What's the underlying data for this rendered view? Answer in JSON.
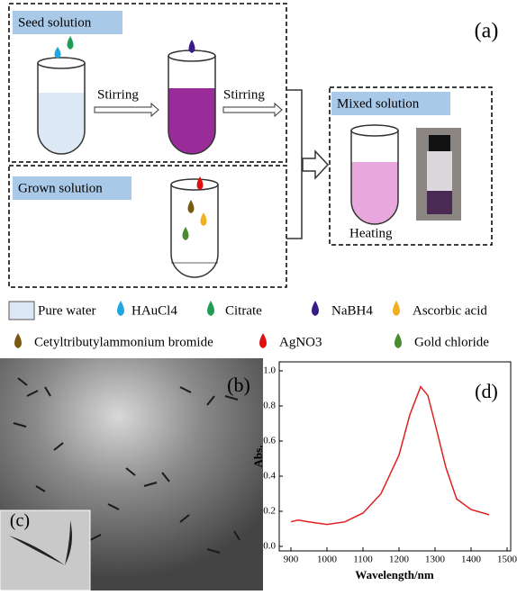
{
  "panel_a": {
    "label": "(a)",
    "seed_title": "Seed solution",
    "stir_1": "Stirring",
    "stir_2": "Stirring",
    "grown_title": "Grown solution",
    "mixed_title": "Mixed solution",
    "heating": "Heating"
  },
  "legend": {
    "items": [
      "Pure water",
      "HAuCl4",
      "Citrate",
      "NaBH4",
      "Ascorbic acid",
      "Cetyltributylammonium bromide",
      "AgNO3",
      "Gold chloride"
    ]
  },
  "panel_b": {
    "label": "(b)"
  },
  "panel_c": {
    "label": "(c)"
  },
  "chart_data": {
    "type": "line",
    "label": "(d)",
    "x_label": "Wavelength/nm",
    "y_label": "Abs.",
    "x": [
      900,
      920,
      950,
      1000,
      1050,
      1100,
      1150,
      1200,
      1230,
      1260,
      1280,
      1300,
      1330,
      1360,
      1400,
      1450
    ],
    "series": [
      {
        "color": "#e02020",
        "values": [
          0.14,
          0.15,
          0.14,
          0.125,
          0.14,
          0.19,
          0.3,
          0.52,
          0.75,
          0.91,
          0.86,
          0.7,
          0.45,
          0.27,
          0.21,
          0.18
        ]
      }
    ],
    "xlim": [
      900,
      1500
    ],
    "xticks": [
      900,
      1000,
      1100,
      1200,
      1300,
      1400,
      1500
    ],
    "ylim": [
      0,
      1
    ],
    "yticks": [
      {
        "value": 0,
        "label": "0.0"
      },
      0.2,
      0.4,
      0.6,
      0.8,
      {
        "value": 1,
        "label": "1.0"
      }
    ]
  }
}
